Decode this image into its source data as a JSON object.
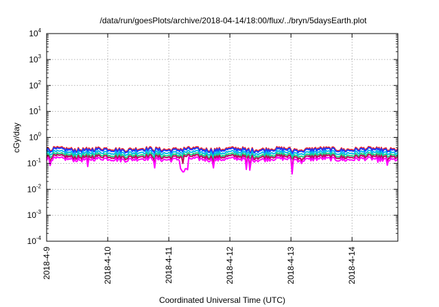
{
  "chart_data": {
    "type": "line",
    "title": "/data/run/goesPlots/archive/2018-04-14/18:00/flux/../bryn/5daysEarth.plot",
    "xlabel": "Coordinated Universal Time (UTC)",
    "ylabel": "cGy/day",
    "y_scale": "log",
    "ylim": [
      0.0001,
      10000
    ],
    "xlim": [
      "2018-04-09",
      "2018-04-14 18:00"
    ],
    "grid": true,
    "legend": "none",
    "x_tick_labels": [
      "2018-4-9",
      "2018-4-10",
      "2018-4-11",
      "2018-4-12",
      "2018-4-13",
      "2018-4-14"
    ],
    "y_ticks": [
      {
        "base": "10",
        "exp": "-4"
      },
      {
        "base": "10",
        "exp": "-3"
      },
      {
        "base": "10",
        "exp": "-2"
      },
      {
        "base": "10",
        "exp": "-1"
      },
      {
        "base": "10",
        "exp": "0"
      },
      {
        "base": "10",
        "exp": "1"
      },
      {
        "base": "10",
        "exp": "2"
      },
      {
        "base": "10",
        "exp": "3"
      },
      {
        "base": "10",
        "exp": "4"
      }
    ],
    "series": [
      {
        "color": "#ff2020",
        "typical": 0.36
      },
      {
        "color": "#1a3cff",
        "typical": 0.33
      },
      {
        "color": "#00bbee",
        "typical": 0.26
      },
      {
        "color": "#20d080",
        "typical": 0.21
      },
      {
        "color": "#c00060",
        "typical": 0.18
      },
      {
        "color": "#ff00ff",
        "typical": 0.145
      }
    ]
  }
}
